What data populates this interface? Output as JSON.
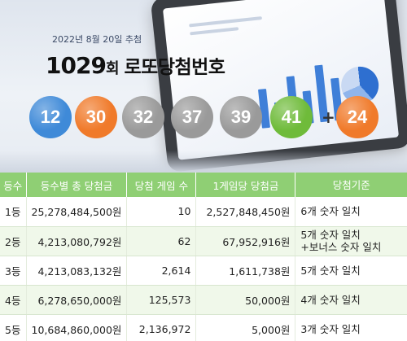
{
  "banner": {
    "draw_date": "2022년 8월 20일 추첨",
    "round_number": "1029",
    "round_suffix": "회",
    "title_rest": "로또당첨번호",
    "balls": [
      {
        "number": "12",
        "color": "#3f8ad8"
      },
      {
        "number": "30",
        "color": "#f07a2a"
      },
      {
        "number": "32",
        "color": "#9a9a9a"
      },
      {
        "number": "37",
        "color": "#9a9a9a"
      },
      {
        "number": "39",
        "color": "#9a9a9a"
      },
      {
        "number": "41",
        "color": "#6fbb3a"
      }
    ],
    "plus_sign": "+",
    "bonus_ball": {
      "number": "24",
      "color": "#f07a2a"
    }
  },
  "table": {
    "headers": [
      "등수",
      "등수별 총 당첨금",
      "당첨 게임 수",
      "1게임당 당첨금",
      "당첨기준"
    ],
    "header_color": "#8fcf74",
    "rows": [
      {
        "rank": "1등",
        "total": "25,278,484,500원",
        "count": "10",
        "per_game": "2,527,848,450원",
        "criteria": "6개 숫자 일치",
        "criteria2": ""
      },
      {
        "rank": "2등",
        "total": "4,213,080,792원",
        "count": "62",
        "per_game": "67,952,916원",
        "criteria": "5개 숫자 일치",
        "criteria2": "+보너스 숫자 일치"
      },
      {
        "rank": "3등",
        "total": "4,213,083,132원",
        "count": "2,614",
        "per_game": "1,611,738원",
        "criteria": "5개 숫자 일치",
        "criteria2": ""
      },
      {
        "rank": "4등",
        "total": "6,278,650,000원",
        "count": "125,573",
        "per_game": "50,000원",
        "criteria": "4개 숫자 일치",
        "criteria2": ""
      },
      {
        "rank": "5등",
        "total": "10,684,860,000원",
        "count": "2,136,972",
        "per_game": "5,000원",
        "criteria": "3개 숫자 일치",
        "criteria2": ""
      }
    ]
  }
}
